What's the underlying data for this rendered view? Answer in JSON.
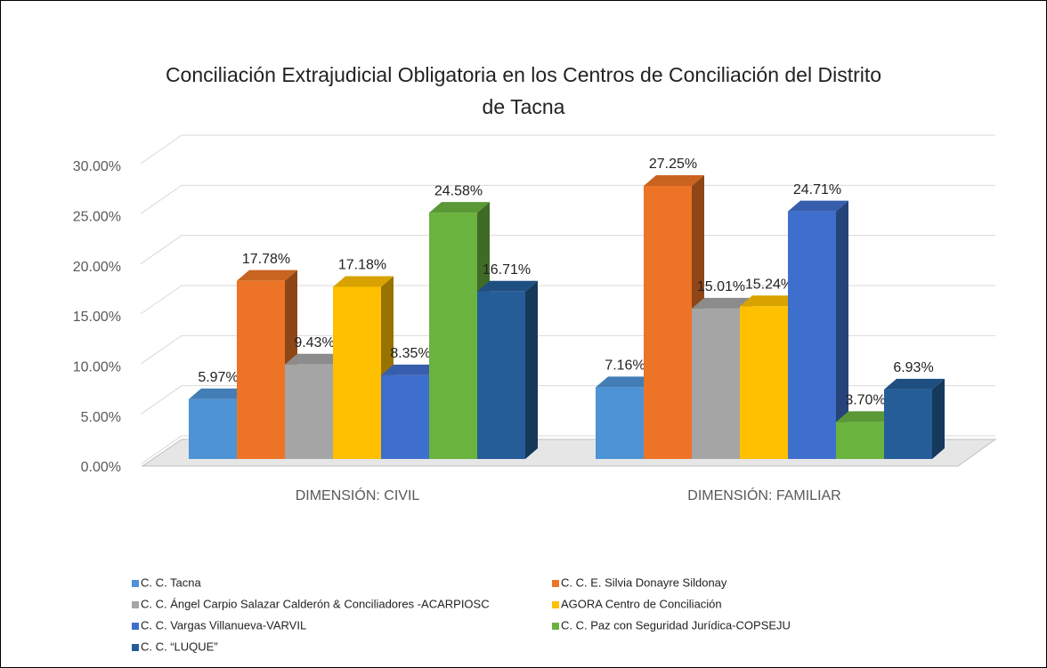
{
  "chart_data": {
    "type": "bar",
    "title": "Conciliación Extrajudicial Obligatoria en los Centros de Conciliación del Distrito de Tacna",
    "categories": [
      "DIMENSIÓN: CIVIL",
      "DIMENSIÓN: FAMILIAR"
    ],
    "series": [
      {
        "name": "C. C. Tacna",
        "color": "#4e93d6",
        "values": [
          5.97,
          7.16
        ],
        "value_labels": [
          "5.97%",
          "7.16%"
        ]
      },
      {
        "name": "C. C. E. Silvia Donayre Sildonay",
        "color": "#ed7426",
        "values": [
          17.78,
          27.25
        ],
        "value_labels": [
          "17.78%",
          "27.25%"
        ]
      },
      {
        "name": "C. C. Ángel Carpio Salazar Calderón & Conciliadores -ACARPIOSC",
        "color": "#a5a5a5",
        "values": [
          9.43,
          15.01
        ],
        "value_labels": [
          "9.43%",
          "15.01%"
        ]
      },
      {
        "name": "AGORA Centro de Conciliación",
        "color": "#fec000",
        "values": [
          17.18,
          15.24
        ],
        "value_labels": [
          "17.18%",
          "15.24%"
        ]
      },
      {
        "name": "C. C. Vargas Villanueva-VARVIL",
        "color": "#3f6fcc",
        "values": [
          8.35,
          24.71
        ],
        "value_labels": [
          "8.35%",
          "24.71%"
        ]
      },
      {
        "name": "C. C. Paz con Seguridad Jurídica-COPSEJU",
        "color": "#6bb33f",
        "values": [
          24.58,
          3.7
        ],
        "value_labels": [
          "24.58%",
          "3.70%"
        ]
      },
      {
        "name": "C. C. “LUQUE”",
        "color": "#245d98",
        "values": [
          16.71,
          6.93
        ],
        "value_labels": [
          "16.71%",
          "6.93%"
        ]
      }
    ],
    "ylim": [
      0,
      30
    ],
    "yticks": [
      {
        "value": 0,
        "label": "0.00%"
      },
      {
        "value": 5,
        "label": "5.00%"
      },
      {
        "value": 10,
        "label": "10.00%"
      },
      {
        "value": 15,
        "label": "15.00%"
      },
      {
        "value": 20,
        "label": "20.00%"
      },
      {
        "value": 25,
        "label": "25.00%"
      },
      {
        "value": 30,
        "label": "30.00%"
      }
    ],
    "grid": true,
    "legend": "bottom"
  }
}
